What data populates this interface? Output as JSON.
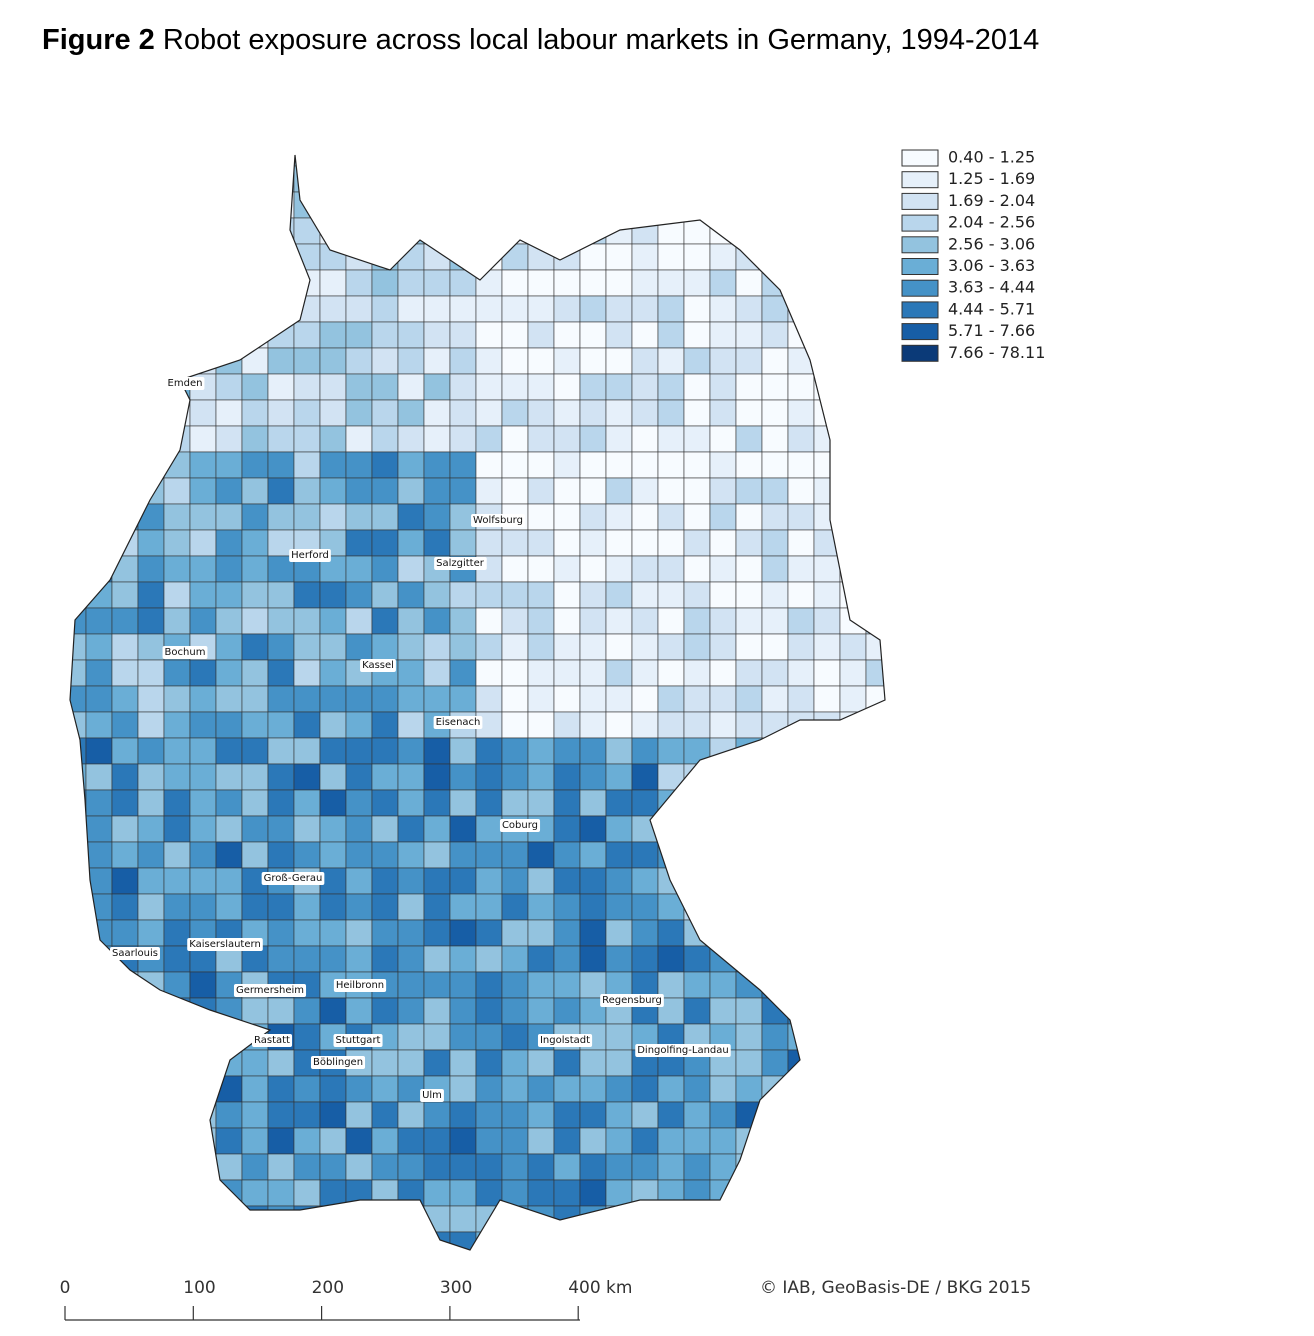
{
  "header": {
    "figure": "Figure 2",
    "title": "Robot exposure across local labour markets in Germany, 1994-2014"
  },
  "legend": [
    {
      "label": "0.40 - 1.25",
      "color": "#f7fbff"
    },
    {
      "label": "1.25 - 1.69",
      "color": "#e6f0fa"
    },
    {
      "label": "1.69 - 2.04",
      "color": "#d2e3f3"
    },
    {
      "label": "2.04 - 2.56",
      "color": "#b9d6ec"
    },
    {
      "label": "2.56 - 3.06",
      "color": "#93c3df"
    },
    {
      "label": "3.06 - 3.63",
      "color": "#6aaed6"
    },
    {
      "label": "3.63 - 4.44",
      "color": "#4592c7"
    },
    {
      "label": "4.44 - 5.71",
      "color": "#2b78b8"
    },
    {
      "label": "5.71 - 7.66",
      "color": "#175ea6"
    },
    {
      "label": "7.66 - 78.11",
      "color": "#0b3a78"
    }
  ],
  "cities": [
    "Emden",
    "Herford",
    "Wolfsburg",
    "Salzgitter",
    "Bochum",
    "Kassel",
    "Eisenach",
    "Coburg",
    "Groß-Gerau",
    "Kaiserslautern",
    "Saarlouis",
    "Germersheim",
    "Heilbronn",
    "Regensburg",
    "Rastatt",
    "Stuttgart",
    "Ingolstadt",
    "Dingolfing-Landau",
    "Böblingen",
    "Ulm"
  ],
  "scale_bar": [
    "0",
    "100",
    "200",
    "300",
    "400 km"
  ],
  "credit": "© IAB, GeoBasis-DE / BKG 2015"
}
